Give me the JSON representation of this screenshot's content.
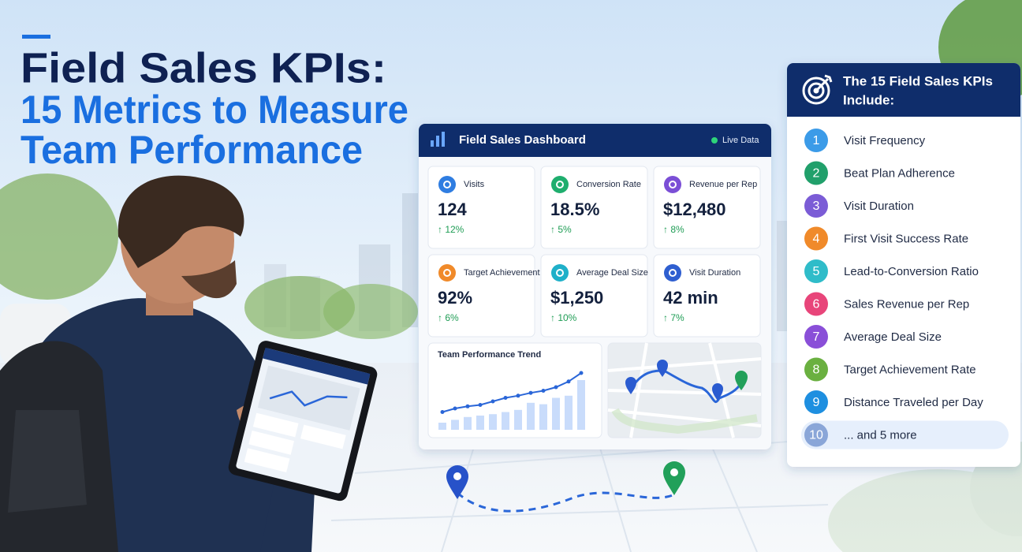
{
  "header": {
    "title_line1": "Field Sales KPIs:",
    "title_line2": "15 Metrics to Measure",
    "title_line3": "Team Performance"
  },
  "dashboard": {
    "title": "Field Sales Dashboard",
    "status": "Live Data",
    "cards": [
      {
        "label": "Visits",
        "value": "124",
        "change": "↑ 12%",
        "color": "#2f7de1"
      },
      {
        "label": "Conversion Rate",
        "value": "18.5%",
        "change": "↑ 5%",
        "color": "#1fae6e"
      },
      {
        "label": "Revenue per Rep",
        "value": "$12,480",
        "change": "↑ 8%",
        "color": "#7b4fd6"
      },
      {
        "label": "Target Achievement",
        "value": "92%",
        "change": "↑ 6%",
        "color": "#f08a2a"
      },
      {
        "label": "Average Deal Size",
        "value": "$1,250",
        "change": "↑ 10%",
        "color": "#1fb0c9"
      },
      {
        "label": "Visit Duration",
        "value": "42 min",
        "change": "↑ 7%",
        "color": "#2f5fd0"
      }
    ],
    "trend": {
      "title": "Team Performance Trend",
      "line": [
        25,
        30,
        33,
        35,
        40,
        45,
        48,
        52,
        55,
        60,
        68,
        80
      ],
      "bars": [
        10,
        14,
        18,
        20,
        22,
        25,
        28,
        38,
        36,
        45,
        48,
        70
      ]
    }
  },
  "kpi_list": {
    "title_line1": "The 15 Field Sales KPIs",
    "title_line2": "Include:",
    "items": [
      {
        "number": 1,
        "text": "Visit Frequency",
        "color": "#3b9be8"
      },
      {
        "number": 2,
        "text": "Beat Plan Adherence",
        "color": "#21a06b"
      },
      {
        "number": 3,
        "text": "Visit Duration",
        "color": "#7b5cd6"
      },
      {
        "number": 4,
        "text": "First Visit Success Rate",
        "color": "#f08a2a"
      },
      {
        "number": 5,
        "text": "Lead-to-Conversion Ratio",
        "color": "#2fbcc9"
      },
      {
        "number": 6,
        "text": "Sales Revenue per Rep",
        "color": "#e8457a"
      },
      {
        "number": 7,
        "text": "Average Deal Size",
        "color": "#8a4fd8"
      },
      {
        "number": 8,
        "text": "Target Achievement Rate",
        "color": "#6ab040"
      },
      {
        "number": 9,
        "text": "Distance Traveled per Day",
        "color": "#1e8fe0"
      },
      {
        "number": 10,
        "text": "... and 5 more",
        "color": "#8aa6d8"
      }
    ]
  }
}
